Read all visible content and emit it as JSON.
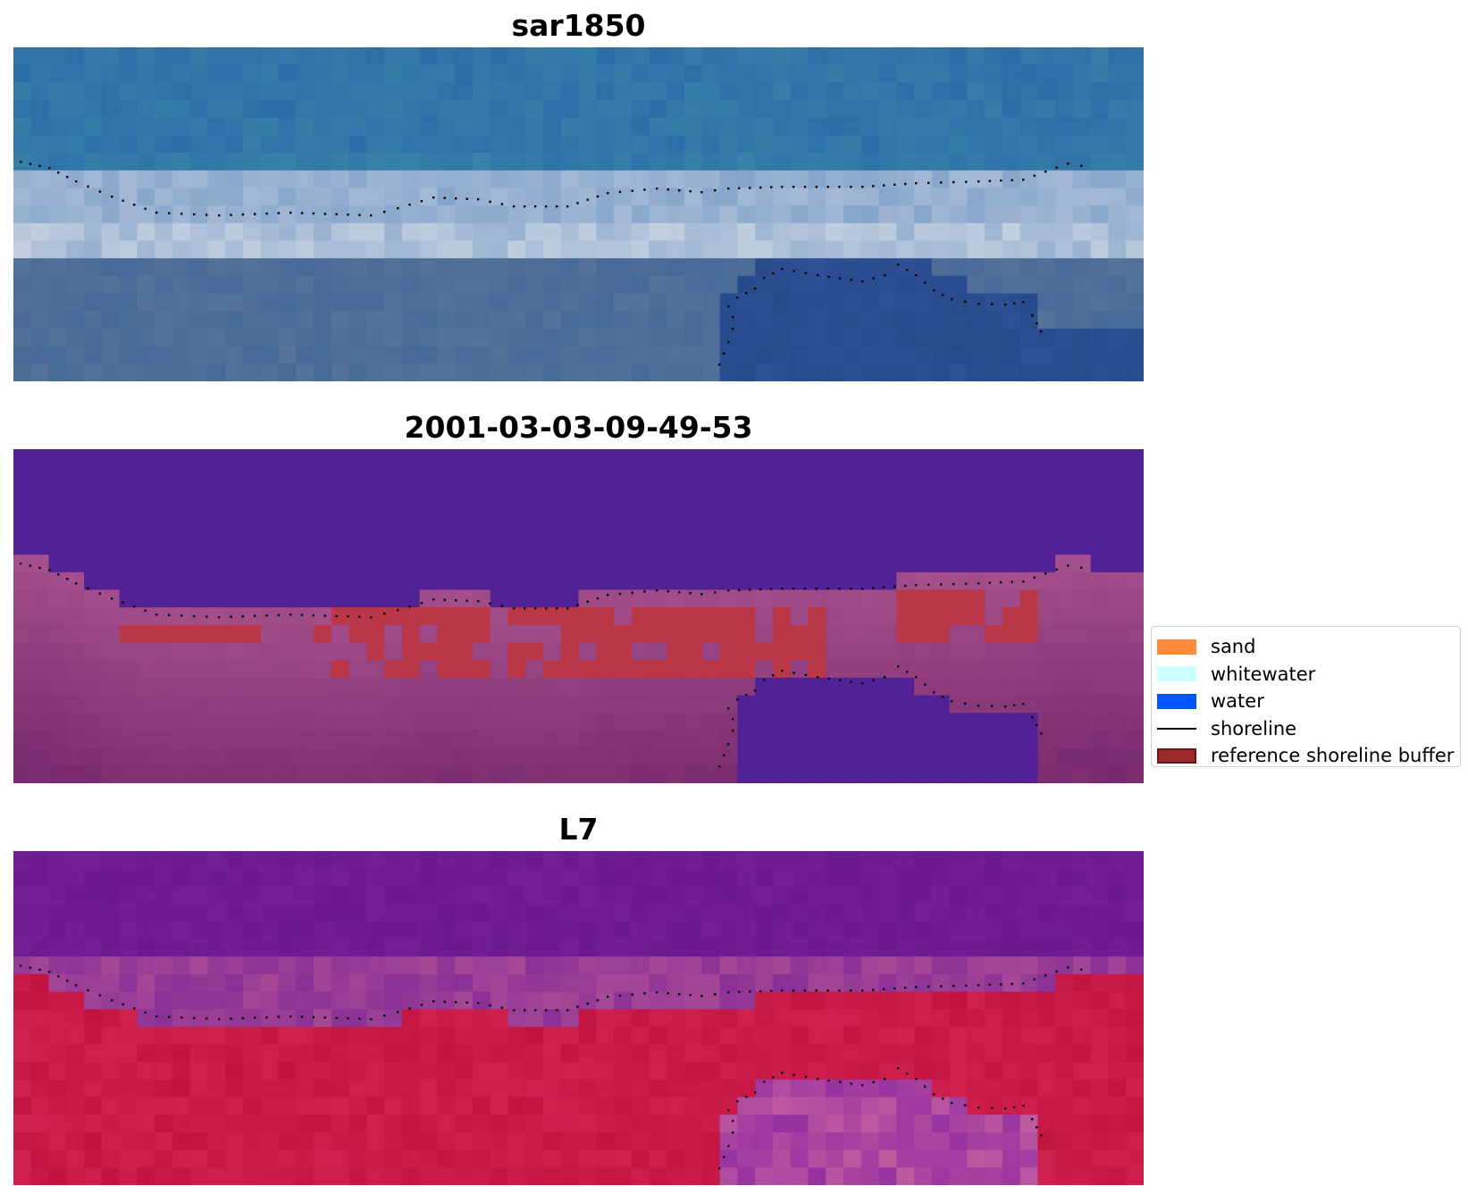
{
  "panels": [
    {
      "title": "sar1850",
      "kind": "rgb"
    },
    {
      "title": "2001-03-03-09-49-53",
      "kind": "classified"
    },
    {
      "title": "L7",
      "kind": "false-color"
    }
  ],
  "legend": {
    "items": [
      {
        "label": "sand",
        "color": "#ff8c3c",
        "type": "patch"
      },
      {
        "label": "whitewater",
        "color": "#ccffff",
        "type": "patch"
      },
      {
        "label": "water",
        "color": "#0055ff",
        "type": "patch"
      },
      {
        "label": "shoreline",
        "color": "#000000",
        "type": "line"
      },
      {
        "label": "reference shoreline buffer",
        "color": "#9b2a2f",
        "type": "patch"
      }
    ]
  }
}
